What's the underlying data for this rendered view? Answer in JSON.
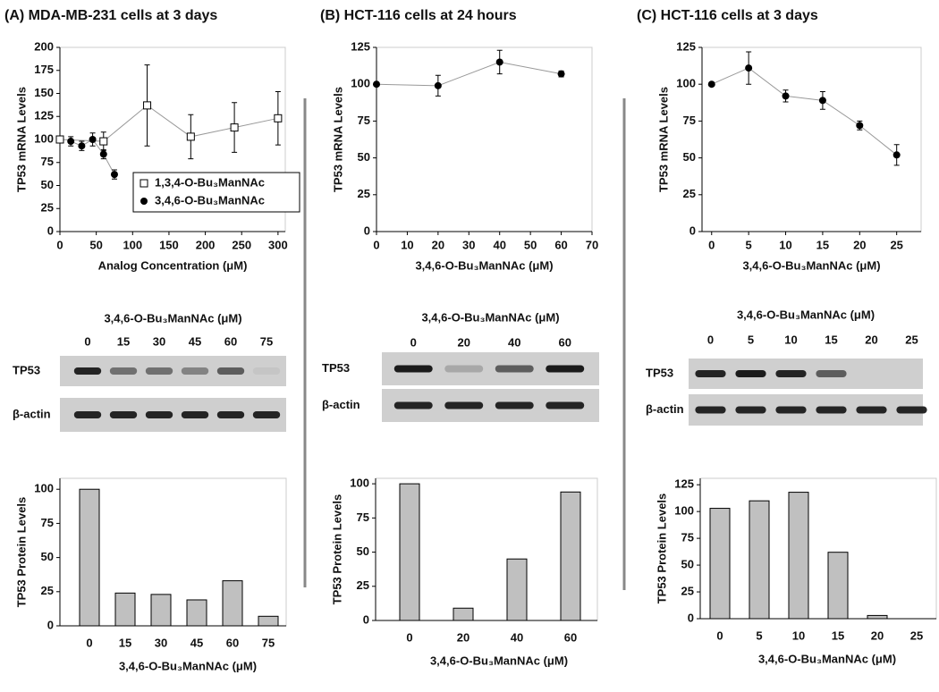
{
  "chart_data": [
    {
      "type": "scatter",
      "title": "(A) MDA-MB-231 cells at 3 days",
      "xlabel": "Analog Concentration (μM)",
      "ylabel": "TP53 mRNA Levels",
      "xlim": [
        0,
        310
      ],
      "xticks": [
        0,
        50,
        100,
        150,
        200,
        250,
        300
      ],
      "ylim": [
        0,
        200
      ],
      "yticks": [
        0,
        25,
        50,
        75,
        100,
        125,
        150,
        175,
        200
      ],
      "legend": "lower right",
      "series": [
        {
          "name": "1,3,4-O-Bu₃ManNAc",
          "marker": "square",
          "color": "#000000",
          "x": [
            0,
            60,
            120,
            180,
            240,
            300
          ],
          "values": [
            100,
            98,
            137,
            103,
            113,
            123
          ],
          "errors": [
            3,
            10,
            44,
            24,
            27,
            29
          ]
        },
        {
          "name": "3,4,6-O-Bu₃ManNAc",
          "marker": "circle",
          "color": "#000000",
          "x": [
            15,
            30,
            45,
            60,
            75
          ],
          "values": [
            98,
            93,
            100,
            84,
            62
          ],
          "errors": [
            5,
            5,
            7,
            5,
            5
          ]
        }
      ]
    },
    {
      "type": "bar",
      "xlabel": "3,4,6-O-Bu₃ManNAc (μM)",
      "ylabel": "TP53 Protein Levels",
      "color": "#c0c0c0",
      "categories": [
        "0",
        "15",
        "30",
        "45",
        "60",
        "75"
      ],
      "values": [
        100,
        24,
        23,
        19,
        33,
        7
      ],
      "ylim": [
        0,
        108
      ],
      "yticks": [
        0,
        25,
        50,
        75,
        100
      ]
    },
    {
      "type": "scatter",
      "title": "(B) HCT-116 cells at 24 hours",
      "xlabel": "3,4,6-O-Bu₃ManNAc (μM)",
      "ylabel": "TP53 mRNA Levels",
      "xlim": [
        0,
        70
      ],
      "xticks": [
        0,
        10,
        20,
        30,
        40,
        50,
        60,
        70
      ],
      "ylim": [
        0,
        125
      ],
      "yticks": [
        0,
        25,
        50,
        75,
        100,
        125
      ],
      "series": [
        {
          "name": "3,4,6-O-Bu₃ManNAc",
          "marker": "circle",
          "color": "#000000",
          "x": [
            0,
            20,
            40,
            60
          ],
          "values": [
            100,
            99,
            115,
            107
          ],
          "errors": [
            null,
            7,
            8,
            2
          ]
        }
      ]
    },
    {
      "type": "bar",
      "xlabel": "3,4,6-O-Bu₃ManNAc (μM)",
      "ylabel": "TP53 Protein Levels",
      "color": "#c0c0c0",
      "categories": [
        "0",
        "20",
        "40",
        "60"
      ],
      "values": [
        100,
        9,
        45,
        94
      ],
      "ylim": [
        0,
        104
      ],
      "yticks": [
        0,
        25,
        50,
        75,
        100
      ]
    },
    {
      "type": "scatter",
      "title": "(C) HCT-116 cells at 3 days",
      "xlabel": "3,4,6-O-Bu₃ManNAc (μM)",
      "ylabel": "TP53 mRNA Levels",
      "xlim": [
        -1.3,
        28.3
      ],
      "xticks": [
        0,
        5,
        10,
        15,
        20,
        25
      ],
      "ylim": [
        0,
        125
      ],
      "yticks": [
        0,
        25,
        50,
        75,
        100,
        125
      ],
      "series": [
        {
          "name": "3,4,6-O-Bu₃ManNAc",
          "marker": "circle",
          "color": "#000000",
          "x": [
            0,
            5,
            10,
            15,
            20,
            25
          ],
          "values": [
            100,
            111,
            92,
            89,
            72,
            52
          ],
          "errors": [
            null,
            11,
            4,
            6,
            3,
            7
          ]
        }
      ]
    },
    {
      "type": "bar",
      "xlabel": "3,4,6-O-Bu₃ManNAc (μM)",
      "ylabel": "TP53 Protein Levels",
      "color": "#c0c0c0",
      "categories": [
        "0",
        "5",
        "10",
        "15",
        "20",
        "25"
      ],
      "values": [
        103,
        110,
        118,
        62,
        3,
        0
      ],
      "ylim": [
        0,
        131
      ],
      "yticks": [
        0,
        25,
        50,
        75,
        100,
        125
      ]
    }
  ],
  "blots": [
    {
      "label": "3,4,6-O-Bu₃ManNAc (μM)",
      "lanes": [
        "0",
        "15",
        "30",
        "45",
        "60",
        "75"
      ],
      "rows": [
        "TP53",
        "β-actin"
      ]
    },
    {
      "label": "3,4,6-O-Bu₃ManNAc (μM)",
      "lanes": [
        "0",
        "20",
        "40",
        "60"
      ],
      "rows": [
        "TP53",
        "β-actin"
      ]
    },
    {
      "label": "3,4,6-O-Bu₃ManNAc (μM)",
      "lanes": [
        "0",
        "5",
        "10",
        "15",
        "20",
        "25"
      ],
      "rows": [
        "TP53",
        "β-actin"
      ]
    }
  ]
}
